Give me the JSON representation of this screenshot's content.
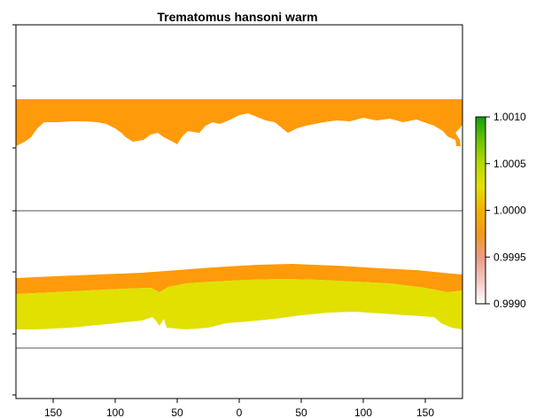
{
  "chart_data": {
    "type": "heatmap",
    "title": "Trematomus hansoni warm",
    "xlabel": "",
    "ylabel": "",
    "x_ticks": [
      {
        "value": -150,
        "label": "150"
      },
      {
        "value": -100,
        "label": "100"
      },
      {
        "value": -50,
        "label": "50"
      },
      {
        "value": 0,
        "label": "0"
      },
      {
        "value": 50,
        "label": "50"
      },
      {
        "value": 100,
        "label": "100"
      },
      {
        "value": 150,
        "label": "150"
      }
    ],
    "xlim": [
      -180,
      180
    ],
    "reference_lines_y_px_note": "",
    "colorbar": {
      "range": [
        0.999,
        1.001
      ],
      "ticks": [
        "0.9990",
        "0.9995",
        "1.0000",
        "1.0005",
        "1.0010"
      ],
      "colors": [
        "#ffffff",
        "#f2c7c2",
        "#ea9b84",
        "#f39a1c",
        "#f0b300",
        "#e4e000",
        "#b8d900",
        "#6cc300",
        "#129e10"
      ]
    },
    "regions": [
      {
        "name": "northern band",
        "value_class": "orange",
        "color": "#ff9a0a"
      },
      {
        "name": "southern band upper",
        "value_class": "orange",
        "color": "#ff9a0a"
      },
      {
        "name": "southern band lower",
        "value_class": "yellow",
        "color": "#e1e000"
      }
    ],
    "grid": false,
    "legend": "right"
  }
}
